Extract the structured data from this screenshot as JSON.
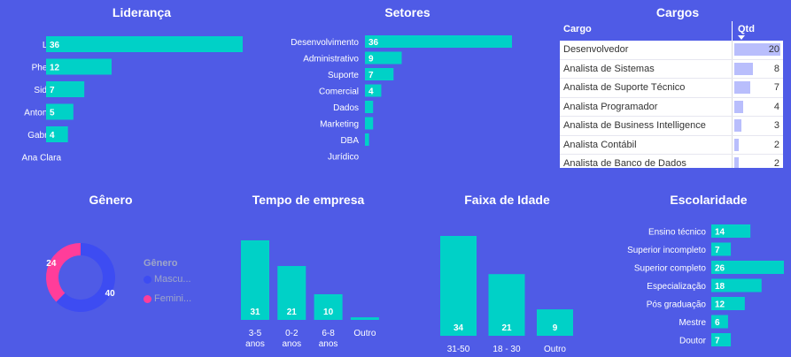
{
  "chart_data": [
    {
      "id": "lideranca",
      "type": "bar",
      "orientation": "horizontal",
      "title": "Liderança",
      "categories": [
        "Laila",
        "Phelipp",
        "Sidney",
        "Antonella",
        "Gabriela",
        "Ana Clara"
      ],
      "values": [
        36,
        12,
        7,
        5,
        4,
        null
      ],
      "color": "#00d1c7"
    },
    {
      "id": "setores",
      "type": "bar",
      "orientation": "horizontal",
      "title": "Setores",
      "categories": [
        "Desenvolvimento",
        "Administrativo",
        "Suporte",
        "Comercial",
        "Dados",
        "Marketing",
        "DBA",
        "Jurídico"
      ],
      "values": [
        36,
        9,
        7,
        4,
        2,
        2,
        1,
        null
      ],
      "value_labels_shown": [
        true,
        true,
        true,
        true,
        false,
        false,
        false,
        false
      ],
      "color": "#00d1c7"
    },
    {
      "id": "cargos",
      "type": "table",
      "title": "Cargos",
      "columns": [
        "Cargo",
        "Qtd"
      ],
      "rows": [
        [
          "Desenvolvedor",
          20
        ],
        [
          "Analista de Sistemas",
          8
        ],
        [
          "Analista de Suporte Técnico",
          7
        ],
        [
          "Analista Programador",
          4
        ],
        [
          "Analista de Business Intelligence",
          3
        ],
        [
          "Analista Contábil",
          2
        ],
        [
          "Analista de Banco de Dados",
          2
        ]
      ],
      "bar_color": "#b9befc"
    },
    {
      "id": "genero",
      "type": "pie",
      "donut": true,
      "title": "Gênero",
      "legend_title": "Gênero",
      "legend_placement": "right",
      "slices": [
        {
          "name": "Mascu...",
          "value": 40,
          "color": "#3d4cf2"
        },
        {
          "name": "Femini...",
          "value": 24,
          "color": "#ff3d9a"
        }
      ]
    },
    {
      "id": "tempo",
      "type": "bar",
      "orientation": "vertical",
      "title": "Tempo de empresa",
      "categories": [
        [
          "3-5",
          "anos"
        ],
        [
          "0-2",
          "anos"
        ],
        [
          "6-8",
          "anos"
        ],
        [
          "Outro"
        ]
      ],
      "values": [
        31,
        21,
        10,
        1
      ],
      "value_labels_shown": [
        true,
        true,
        true,
        false
      ],
      "color": "#00d1c7"
    },
    {
      "id": "idade",
      "type": "bar",
      "orientation": "vertical",
      "title": "Faixa de Idade",
      "categories": [
        [
          "31-50"
        ],
        [
          "18 - 30"
        ],
        [
          "Outro"
        ]
      ],
      "values": [
        34,
        21,
        9
      ],
      "color": "#00d1c7"
    },
    {
      "id": "escolaridade",
      "type": "bar",
      "orientation": "horizontal",
      "title": "Escolaridade",
      "categories": [
        "Ensino técnico",
        "Superior incompleto",
        "Superior completo",
        "Especialização",
        "Pós graduação",
        "Mestre",
        "Doutor"
      ],
      "values": [
        14,
        7,
        26,
        18,
        12,
        6,
        7
      ],
      "color": "#00d1c7"
    }
  ]
}
